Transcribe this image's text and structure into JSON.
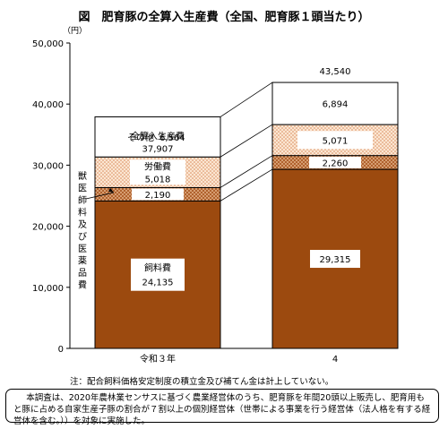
{
  "title": "図　肥育豚の全算入生産費（全国、肥育豚１頭当たり）",
  "chart_data": {
    "type": "bar",
    "stacked": true,
    "ylabel": "（円）",
    "ylim": [
      0,
      50000
    ],
    "yticks": [
      0,
      10000,
      20000,
      30000,
      40000,
      50000
    ],
    "ytick_labels": [
      "0",
      "10,000",
      "20,000",
      "30,000",
      "40,000",
      "50,000"
    ],
    "categories": [
      "令和３年",
      "4"
    ],
    "series": [
      {
        "name": "飼料費",
        "values": [
          24135,
          29315
        ],
        "value_labels": [
          "24,135",
          "29,315"
        ],
        "color": "#9c4a0f"
      },
      {
        "name": "獣医師料及び医薬品費",
        "values": [
          2190,
          2260
        ],
        "value_labels": [
          "2,190",
          "2,260"
        ],
        "color": "#b56a3a"
      },
      {
        "name": "労働費",
        "values": [
          5018,
          5071
        ],
        "value_labels": [
          "5,018",
          "5,071"
        ],
        "color": "#f3d2b4"
      },
      {
        "name": "その他",
        "values": [
          6564,
          6894
        ],
        "value_labels": [
          "6,564",
          "6,894"
        ],
        "color": "#ffffff"
      }
    ],
    "totals": {
      "name": "全算入生産費",
      "values": [
        37907,
        43540
      ],
      "value_labels": [
        "37,907",
        "43,540"
      ]
    },
    "labels": {
      "total": "全算入生産費",
      "feed": "飼料費",
      "vet": "獣医師料及び医薬品費",
      "labor": "労働費",
      "other": "その他"
    }
  },
  "note": "注：配合飼料価格安定制度の積立金及び補てん金は計上していない。",
  "footer": "本調査は、2020年農林業センサスに基づく農業経営体のうち、肥育豚を年間20頭以上販売し、肥育用もと豚に占める自家生産子豚の割合が７割以上の個別経営体（世帯による事業を行う経営体（法人格を有する経営体を含む。））を対象に実施した。"
}
